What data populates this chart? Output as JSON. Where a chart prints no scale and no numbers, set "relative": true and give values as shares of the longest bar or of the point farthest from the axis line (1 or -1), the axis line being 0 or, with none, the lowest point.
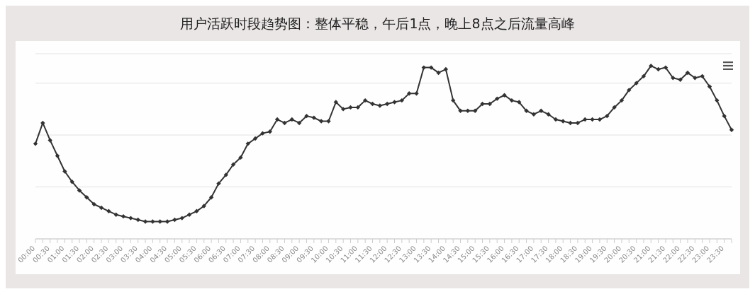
{
  "chart_data": {
    "type": "line",
    "title": "用户活跃时段趋势图：整体平稳，午后1点，晚上8点之后流量高峰",
    "relative": true,
    "grid": "y",
    "marker": "diamond",
    "line_style": "solid",
    "categories": [
      "00:00",
      null,
      "00:30",
      null,
      "01:00",
      null,
      "01:30",
      null,
      "02:00",
      null,
      "02:30",
      null,
      "03:00",
      null,
      "03:30",
      null,
      "04:00",
      null,
      "04:30",
      null,
      "05:00",
      null,
      "05:30",
      null,
      "06:00",
      null,
      "06:30",
      null,
      "07:00",
      null,
      "07:30",
      null,
      "08:00",
      null,
      "08:30",
      null,
      "09:00",
      null,
      "09:30",
      null,
      "10:00",
      null,
      "10:30",
      null,
      "11:00",
      null,
      "11:30",
      null,
      "12:00",
      null,
      "12:30",
      null,
      "13:00",
      null,
      "13:30",
      null,
      "14:00",
      null,
      "14:30",
      null,
      "15:00",
      null,
      "15:30",
      null,
      "16:00",
      null,
      "16:30",
      null,
      "17:00",
      null,
      "17:30",
      null,
      "18:00",
      null,
      "18:30",
      null,
      "19:00",
      null,
      "19:30",
      null,
      "20:00",
      null,
      "20:30",
      null,
      "21:00",
      null,
      "21:30",
      null,
      "22:00",
      null,
      "22:30",
      null,
      "23:00",
      null,
      "23:30",
      null
    ],
    "series": [
      {
        "color": "#333333",
        "values": [
          0.55,
          0.67,
          0.57,
          0.48,
          0.39,
          0.33,
          0.28,
          0.24,
          0.2,
          0.18,
          0.16,
          0.14,
          0.13,
          0.12,
          0.11,
          0.1,
          0.1,
          0.1,
          0.1,
          0.11,
          0.12,
          0.14,
          0.16,
          0.19,
          0.24,
          0.32,
          0.37,
          0.43,
          0.47,
          0.55,
          0.58,
          0.61,
          0.62,
          0.69,
          0.67,
          0.69,
          0.67,
          0.71,
          0.7,
          0.68,
          0.68,
          0.79,
          0.75,
          0.76,
          0.76,
          0.8,
          0.78,
          0.77,
          0.78,
          0.79,
          0.8,
          0.84,
          0.84,
          0.99,
          0.99,
          0.96,
          0.98,
          0.8,
          0.74,
          0.74,
          0.74,
          0.78,
          0.78,
          0.81,
          0.83,
          0.8,
          0.79,
          0.74,
          0.72,
          0.74,
          0.72,
          0.69,
          0.68,
          0.67,
          0.67,
          0.69,
          0.69,
          0.69,
          0.71,
          0.76,
          0.8,
          0.86,
          0.9,
          0.94,
          1,
          0.98,
          0.99,
          0.93,
          0.92,
          0.96,
          0.93,
          0.94,
          0.88,
          0.8,
          0.71,
          0.63
        ]
      }
    ]
  }
}
